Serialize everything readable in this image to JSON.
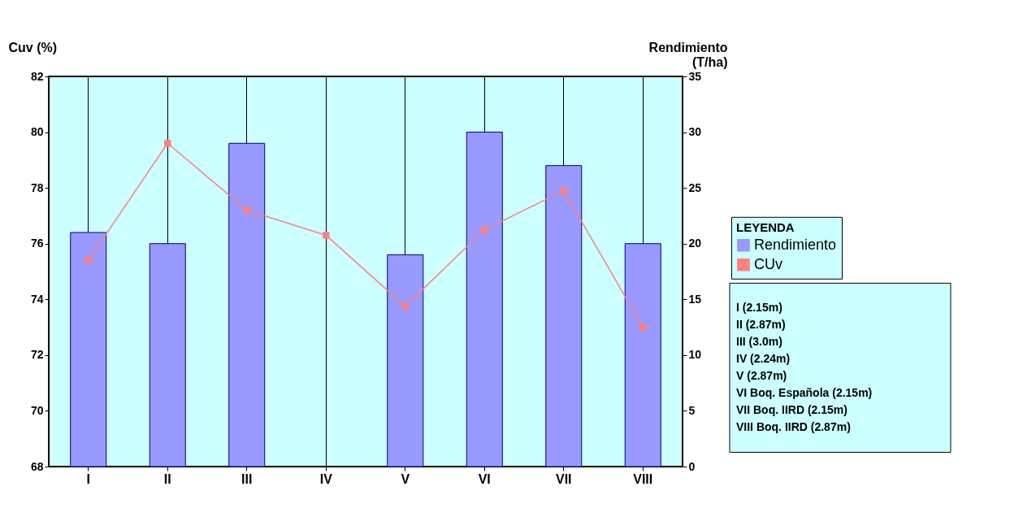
{
  "chart_data": {
    "type": "bar",
    "categories": [
      "I",
      "II",
      "III",
      "IV",
      "V",
      "VI",
      "VII",
      "VIII"
    ],
    "ylabel": "Cuv (%)",
    "y2label": "Rendimiento\n(T/ha)",
    "legend_title": "LEYENDA",
    "ylim": [
      68,
      82
    ],
    "yticks": [
      68,
      70,
      72,
      74,
      76,
      78,
      80,
      82
    ],
    "y2lim": [
      0,
      35
    ],
    "y2ticks": [
      0,
      5,
      10,
      15,
      20,
      25,
      30,
      35
    ],
    "series": [
      {
        "name": "Rendimiento",
        "axis": "y2",
        "color": "#9999ff",
        "values": [
          21,
          20,
          29,
          null,
          19,
          30,
          27,
          20
        ]
      },
      {
        "name": "CUv",
        "type": "line",
        "axis": "y",
        "color": "#ff8080",
        "marker": "square",
        "values": [
          75.4,
          79.6,
          77.2,
          76.3,
          73.75,
          76.5,
          77.9,
          73.0
        ]
      }
    ],
    "grid": "x",
    "legend": "right",
    "annotations": [
      "I (2.15m)",
      "II (2.87m)",
      "III (3.0m)",
      "IV (2.24m)",
      "V (2.87m)",
      "VI Boq. Española (2.15m)",
      "VII Boq. IIRD (2.15m)",
      "VIII Boq. IIRD (2.87m)"
    ]
  }
}
